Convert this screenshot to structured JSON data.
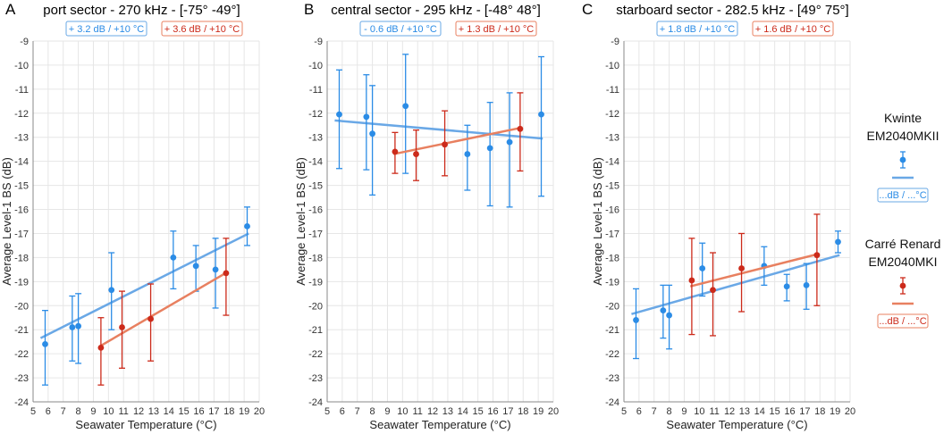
{
  "chart_data": [
    {
      "type": "scatter",
      "letter": "A",
      "title": "port sector - 270 kHz - [-75° -49°]",
      "xlabel": "Seawater Temperature (°C)",
      "ylabel": "Average Level-1 BS (dB)",
      "xlim": [
        5,
        20
      ],
      "ylim": [
        -24,
        -9
      ],
      "xticks": [
        5,
        6,
        7,
        8,
        9,
        10,
        11,
        12,
        13,
        14,
        15,
        16,
        17,
        18,
        19,
        20
      ],
      "yticks": [
        -9,
        -10,
        -11,
        -12,
        -13,
        -14,
        -15,
        -16,
        -17,
        -18,
        -19,
        -20,
        -21,
        -22,
        -23,
        -24
      ],
      "series": [
        {
          "name": "Kwinte EM2040MKII",
          "color": "#2b8ce6",
          "line_color": "#6aa8e6",
          "badge": "+ 3.2 dB / +10 °C",
          "points": [
            {
              "x": 5.8,
              "y": -21.6,
              "lo": -23.3,
              "hi": -20.2
            },
            {
              "x": 7.6,
              "y": -20.9,
              "lo": -22.3,
              "hi": -19.6
            },
            {
              "x": 8.0,
              "y": -20.85,
              "lo": -22.4,
              "hi": -19.5
            },
            {
              "x": 10.2,
              "y": -19.35,
              "lo": -21.0,
              "hi": -17.8
            },
            {
              "x": 14.3,
              "y": -18.0,
              "lo": -19.3,
              "hi": -16.9
            },
            {
              "x": 15.8,
              "y": -18.35,
              "lo": -19.4,
              "hi": -17.5
            },
            {
              "x": 17.1,
              "y": -18.5,
              "lo": -20.1,
              "hi": -17.2
            },
            {
              "x": 19.2,
              "y": -16.7,
              "lo": -17.5,
              "hi": -15.9
            }
          ],
          "fit": [
            [
              5.5,
              -21.35
            ],
            [
              19.3,
              -17.0
            ]
          ]
        },
        {
          "name": "Carré Renard EM2040MKI",
          "color": "#cc2a1a",
          "line_color": "#e88060",
          "badge": "+ 3.6 dB / +10 °C",
          "points": [
            {
              "x": 9.5,
              "y": -21.75,
              "lo": -23.3,
              "hi": -20.5
            },
            {
              "x": 10.9,
              "y": -20.9,
              "lo": -22.6,
              "hi": -19.4
            },
            {
              "x": 12.8,
              "y": -20.55,
              "lo": -22.3,
              "hi": -19.1
            },
            {
              "x": 17.8,
              "y": -18.65,
              "lo": -20.4,
              "hi": -17.2
            }
          ],
          "fit": [
            [
              9.4,
              -21.7
            ],
            [
              17.9,
              -18.6
            ]
          ]
        }
      ]
    },
    {
      "type": "scatter",
      "letter": "B",
      "title": "central sector - 295 kHz - [-48° 48°]",
      "xlabel": "Seawater Temperature (°C)",
      "ylabel": "Average Level-1 BS (dB)",
      "xlim": [
        5,
        20
      ],
      "ylim": [
        -24,
        -9
      ],
      "xticks": [
        5,
        6,
        7,
        8,
        9,
        10,
        11,
        12,
        13,
        14,
        15,
        16,
        17,
        18,
        19,
        20
      ],
      "yticks": [
        -9,
        -10,
        -11,
        -12,
        -13,
        -14,
        -15,
        -16,
        -17,
        -18,
        -19,
        -20,
        -21,
        -22,
        -23,
        -24
      ],
      "series": [
        {
          "name": "Kwinte EM2040MKII",
          "color": "#2b8ce6",
          "line_color": "#6aa8e6",
          "badge": "- 0.6 dB / +10 °C",
          "points": [
            {
              "x": 5.8,
              "y": -12.05,
              "lo": -14.3,
              "hi": -10.2
            },
            {
              "x": 7.6,
              "y": -12.15,
              "lo": -14.35,
              "hi": -10.4
            },
            {
              "x": 8.0,
              "y": -12.85,
              "lo": -15.4,
              "hi": -10.85
            },
            {
              "x": 10.2,
              "y": -11.7,
              "lo": -14.5,
              "hi": -9.55
            },
            {
              "x": 14.3,
              "y": -13.7,
              "lo": -15.2,
              "hi": -12.5
            },
            {
              "x": 15.8,
              "y": -13.45,
              "lo": -15.85,
              "hi": -11.55
            },
            {
              "x": 17.1,
              "y": -13.2,
              "lo": -15.9,
              "hi": -11.15
            },
            {
              "x": 19.2,
              "y": -12.05,
              "lo": -15.45,
              "hi": -9.65
            }
          ],
          "fit": [
            [
              5.5,
              -12.3
            ],
            [
              19.3,
              -13.05
            ]
          ]
        },
        {
          "name": "Carré Renard EM2040MKI",
          "color": "#cc2a1a",
          "line_color": "#e88060",
          "badge": "+ 1.3 dB / +10 °C",
          "points": [
            {
              "x": 9.5,
              "y": -13.6,
              "lo": -14.5,
              "hi": -12.8
            },
            {
              "x": 10.9,
              "y": -13.7,
              "lo": -14.8,
              "hi": -12.7
            },
            {
              "x": 12.8,
              "y": -13.3,
              "lo": -14.6,
              "hi": -11.9
            },
            {
              "x": 17.8,
              "y": -12.65,
              "lo": -14.4,
              "hi": -11.15
            }
          ],
          "fit": [
            [
              9.4,
              -13.7
            ],
            [
              17.9,
              -12.6
            ]
          ]
        }
      ]
    },
    {
      "type": "scatter",
      "letter": "C",
      "title": "starboard sector - 282.5 kHz - [49° 75°]",
      "xlabel": "Seawater Temperature (°C)",
      "ylabel": "Average Level-1 BS (dB)",
      "xlim": [
        5,
        20
      ],
      "ylim": [
        -24,
        -9
      ],
      "xticks": [
        5,
        6,
        7,
        8,
        9,
        10,
        11,
        12,
        13,
        14,
        15,
        16,
        17,
        18,
        19,
        20
      ],
      "yticks": [
        -9,
        -10,
        -11,
        -12,
        -13,
        -14,
        -15,
        -16,
        -17,
        -18,
        -19,
        -20,
        -21,
        -22,
        -23,
        -24
      ],
      "series": [
        {
          "name": "Kwinte EM2040MKII",
          "color": "#2b8ce6",
          "line_color": "#6aa8e6",
          "badge": "+ 1.8 dB / +10 °C",
          "points": [
            {
              "x": 5.8,
              "y": -20.6,
              "lo": -22.2,
              "hi": -19.3
            },
            {
              "x": 7.6,
              "y": -20.2,
              "lo": -21.35,
              "hi": -19.15
            },
            {
              "x": 8.0,
              "y": -20.4,
              "lo": -21.8,
              "hi": -19.15
            },
            {
              "x": 10.2,
              "y": -18.45,
              "lo": -19.6,
              "hi": -17.4
            },
            {
              "x": 14.3,
              "y": -18.35,
              "lo": -19.15,
              "hi": -17.55
            },
            {
              "x": 15.8,
              "y": -19.2,
              "lo": -19.8,
              "hi": -18.7
            },
            {
              "x": 17.1,
              "y": -19.15,
              "lo": -20.15,
              "hi": -18.25
            },
            {
              "x": 19.2,
              "y": -17.35,
              "lo": -17.8,
              "hi": -16.9
            }
          ],
          "fit": [
            [
              5.5,
              -20.35
            ],
            [
              19.3,
              -17.9
            ]
          ]
        },
        {
          "name": "Carré Renard EM2040MKI",
          "color": "#cc2a1a",
          "line_color": "#e88060",
          "badge": "+ 1.6 dB / +10 °C",
          "points": [
            {
              "x": 9.5,
              "y": -18.95,
              "lo": -21.2,
              "hi": -17.2
            },
            {
              "x": 10.9,
              "y": -19.35,
              "lo": -21.25,
              "hi": -17.8
            },
            {
              "x": 12.8,
              "y": -18.45,
              "lo": -20.25,
              "hi": -17.0
            },
            {
              "x": 17.8,
              "y": -17.9,
              "lo": -20.0,
              "hi": -16.2
            }
          ],
          "fit": [
            [
              9.4,
              -19.2
            ],
            [
              17.9,
              -17.85
            ]
          ]
        }
      ]
    }
  ],
  "legend": [
    {
      "name_line1": "Kwinte",
      "name_line2": "EM2040MKII",
      "color": "#2b8ce6",
      "line_color": "#6aa8e6",
      "badge": "...dB / ...°C"
    },
    {
      "name_line1": "Carré Renard",
      "name_line2": "EM2040MKI",
      "color": "#cc2a1a",
      "line_color": "#e88060",
      "badge": "...dB / ...°C"
    }
  ]
}
